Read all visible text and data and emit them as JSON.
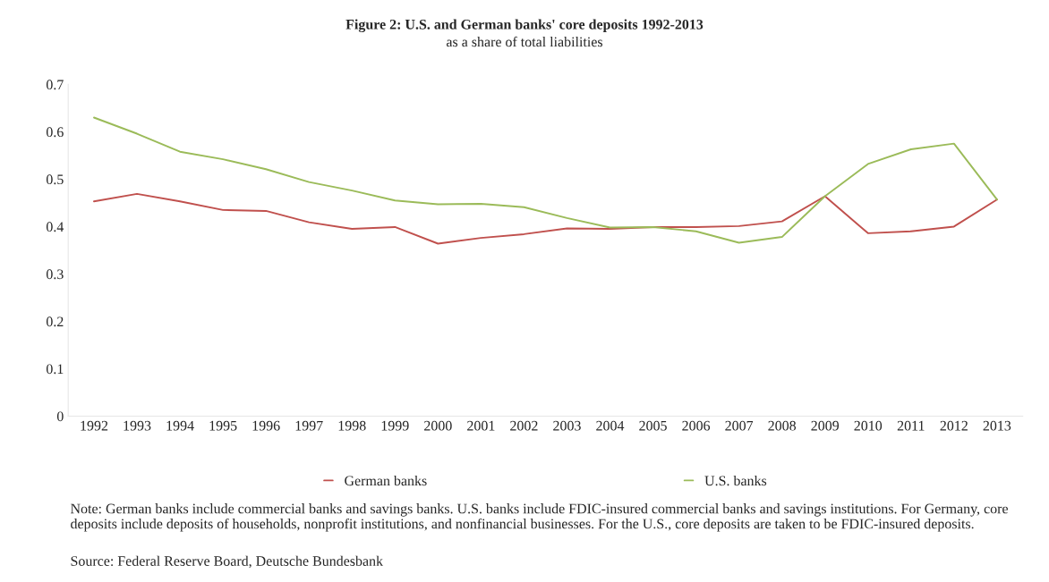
{
  "chart_data": {
    "type": "line",
    "title": "Figure 2: U.S. and German banks' core deposits 1992-2013",
    "subtitle": "as a share of total liabilities",
    "categories": [
      "1992",
      "1993",
      "1994",
      "1995",
      "1996",
      "1997",
      "1998",
      "1999",
      "2000",
      "2001",
      "2002",
      "2003",
      "2004",
      "2005",
      "2006",
      "2007",
      "2008",
      "2009",
      "2010",
      "2011",
      "2012",
      "2013"
    ],
    "series": [
      {
        "name": "German banks",
        "color": "#c0504d",
        "values": [
          0.453,
          0.469,
          0.453,
          0.435,
          0.433,
          0.409,
          0.395,
          0.399,
          0.364,
          0.376,
          0.384,
          0.396,
          0.395,
          0.399,
          0.399,
          0.401,
          0.411,
          0.464,
          0.386,
          0.39,
          0.4,
          0.457
        ]
      },
      {
        "name": "U.S. banks",
        "color": "#9bbb59",
        "values": [
          0.63,
          0.596,
          0.558,
          0.542,
          0.521,
          0.494,
          0.476,
          0.455,
          0.447,
          0.448,
          0.441,
          0.418,
          0.398,
          0.399,
          0.39,
          0.366,
          0.378,
          0.464,
          0.532,
          0.563,
          0.575,
          0.457
        ]
      }
    ],
    "ylim": [
      0,
      0.7
    ],
    "yticks": [
      0,
      0.1,
      0.2,
      0.3,
      0.4,
      0.5,
      0.6,
      0.7
    ],
    "grid": false,
    "legend": "bottom",
    "marker": "none",
    "line_style": "solid",
    "annotations": [
      "Note: German banks include commercial banks and savings banks. U.S. banks include FDIC-insured commercial banks and savings institutions. For Germany, core deposits include deposits of households, nonprofit institutions, and nonfinancial businesses. For the U.S., core deposits are taken to be FDIC-insured deposits.",
      "Source: Federal Reserve Board, Deutsche Bundesbank"
    ]
  }
}
